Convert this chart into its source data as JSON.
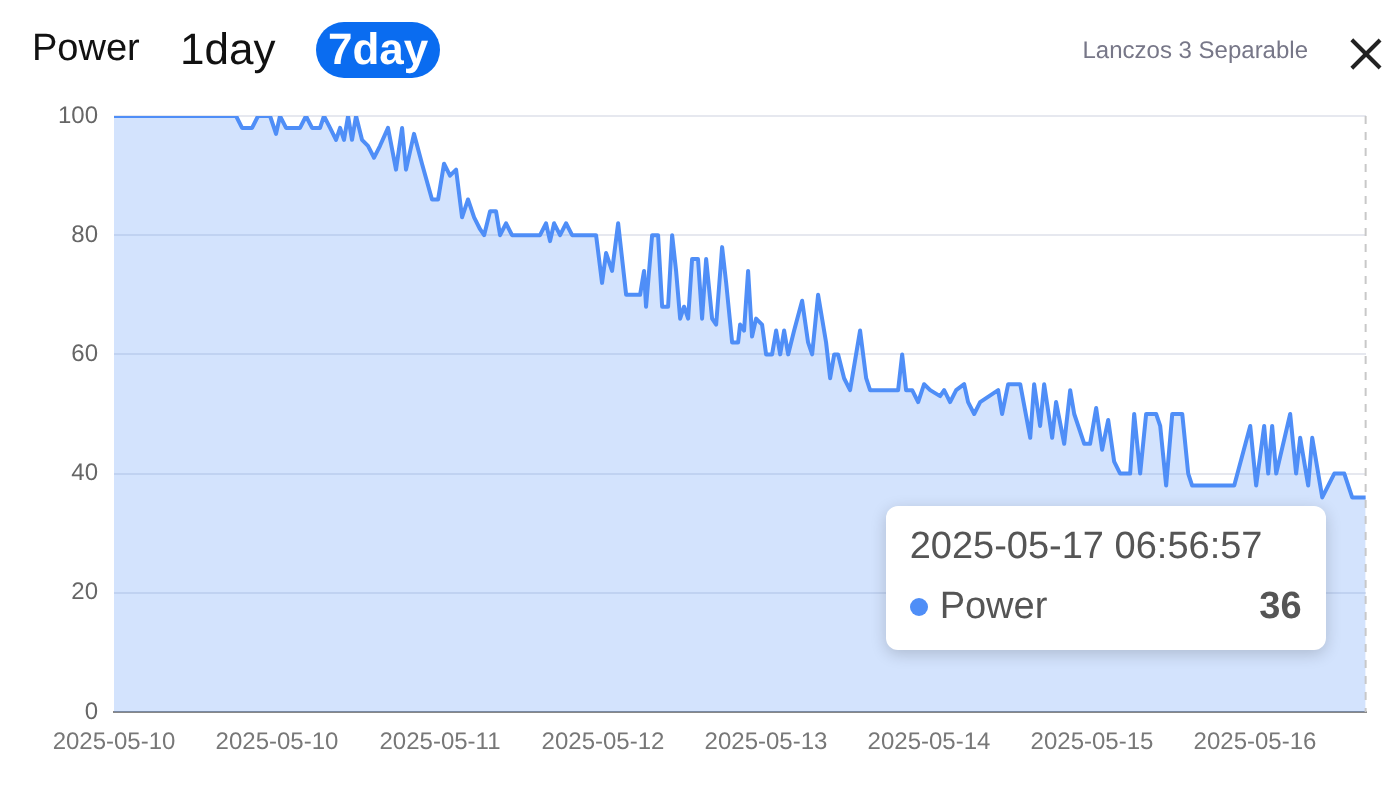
{
  "chart_data": {
    "type": "area",
    "title": "Power",
    "annotations": [
      "1day",
      "7day",
      "Lanczos 3 Separable",
      {
        "text": "2025-05-17 06:56:57",
        "x": "2025-05-17T06:56:57",
        "y": 36
      },
      {
        "text": "36",
        "x": "2025-05-17T06:56:57",
        "y": 36
      }
    ],
    "series": [
      {
        "name": "Power",
        "color": "#4f8ef7",
        "x": [
          "2025-05-10T00:00",
          "2025-05-10T17:04",
          "2025-05-10T17:54",
          "2025-05-10T19:18",
          "2025-05-10T20:08",
          "2025-05-10T21:49",
          "2025-05-10T22:39",
          "2025-05-10T23:12",
          "2025-05-11T00:03",
          "2025-05-11T02:00",
          "2025-05-11T02:50",
          "2025-05-11T03:41",
          "2025-05-11T04:48",
          "2025-05-11T05:21",
          "2025-05-11T06:12",
          "2025-05-11T07:02",
          "2025-05-11T07:36",
          "2025-05-11T08:09",
          "2025-05-11T08:43",
          "2025-05-11T09:16",
          "2025-05-11T09:50",
          "2025-05-11T10:40",
          "2025-05-11T11:30",
          "2025-05-11T12:21",
          "2025-05-11T13:11",
          "2025-05-11T14:18",
          "2025-05-11T15:25",
          "2025-05-11T16:16",
          "2025-05-11T16:49",
          "2025-05-11T17:56",
          "2025-05-11T19:03",
          "2025-05-11T20:27",
          "2025-05-11T21:18",
          "2025-05-11T22:08",
          "2025-05-11T22:58",
          "2025-05-11T23:49",
          "2025-05-12T00:39",
          "2025-05-12T01:29",
          "2025-05-12T02:20",
          "2025-05-12T03:10",
          "2025-05-12T03:44",
          "2025-05-12T04:34",
          "2025-05-12T05:24",
          "2025-05-12T05:58",
          "2025-05-12T06:48",
          "2025-05-12T07:38",
          "2025-05-12T11:33",
          "2025-05-12T12:23",
          "2025-05-12T12:57",
          "2025-05-12T13:31",
          "2025-05-12T14:21",
          "2025-05-12T15:11",
          "2025-05-12T16:02",
          "2025-05-12T19:23",
          "2025-05-12T20:13",
          "2025-05-12T20:47",
          "2025-05-12T21:37",
          "2025-05-12T22:28",
          "2025-05-12T23:35",
          "2025-05-13T01:32",
          "2025-05-13T02:05",
          "2025-05-13T02:22",
          "2025-05-13T03:13",
          "2025-05-13T04:03",
          "2025-05-13T04:37",
          "2025-05-13T05:27",
          "2025-05-13T06:01",
          "2025-05-13T06:34",
          "2025-05-13T07:08",
          "2025-05-13T07:41",
          "2025-05-13T08:15",
          "2025-05-13T08:48",
          "2025-05-13T09:38",
          "2025-05-13T10:12",
          "2025-05-13T10:46",
          "2025-05-13T11:36",
          "2025-05-13T12:10",
          "2025-05-13T13:00",
          "2025-05-13T13:34",
          "2025-05-13T14:24",
          "2025-05-13T15:14",
          "2025-05-13T15:31",
          "2025-05-13T16:04",
          "2025-05-13T16:38",
          "2025-05-13T17:11",
          "2025-05-13T17:45",
          "2025-05-13T18:35",
          "2025-05-13T19:09",
          "2025-05-13T19:59",
          "2025-05-13T20:33",
          "2025-05-13T21:07",
          "2025-05-13T21:40",
          "2025-05-13T22:14",
          "2025-05-13T23:04",
          "2025-05-14T00:11",
          "2025-05-14T01:01",
          "2025-05-14T01:35",
          "2025-05-14T02:25",
          "2025-05-14T03:32",
          "2025-05-14T04:06",
          "2025-05-14T04:40",
          "2025-05-14T05:13",
          "2025-05-14T06:03",
          "2025-05-14T06:53",
          "2025-05-14T08:17",
          "2025-05-14T09:08",
          "2025-05-14T09:41",
          "2025-05-14T13:36",
          "2025-05-14T14:10",
          "2025-05-14T14:43",
          "2025-05-14T15:34",
          "2025-05-14T16:24",
          "2025-05-14T17:14",
          "2025-05-14T18:05",
          "2025-05-14T19:28",
          "2025-05-14T20:02",
          "2025-05-14T20:52",
          "2025-05-14T21:43",
          "2025-05-14T22:50",
          "2025-05-14T23:23",
          "2025-05-15T00:14",
          "2025-05-15T01:04",
          "2025-05-15T03:35",
          "2025-05-15T04:08",
          "2025-05-15T04:59",
          "2025-05-15T06:40",
          "2025-05-15T08:04",
          "2025-05-15T08:37",
          "2025-05-15T09:27",
          "2025-05-15T10:01",
          "2025-05-15T11:08",
          "2025-05-15T11:41",
          "2025-05-15T12:49",
          "2025-05-15T13:39",
          "2025-05-15T14:13",
          "2025-05-15T15:37",
          "2025-05-15T16:26",
          "2025-05-15T17:17",
          "2025-05-15T18:07",
          "2025-05-15T18:58",
          "2025-05-15T19:48",
          "2025-05-15T20:38",
          "2025-05-15T22:02",
          "2025-05-15T22:36",
          "2025-05-15T23:26",
          "2025-05-16T00:16",
          "2025-05-16T01:40",
          "2025-05-16T02:14",
          "2025-05-16T03:04",
          "2025-05-16T03:55",
          "2025-05-16T05:19",
          "2025-05-16T06:09",
          "2025-05-16T06:42",
          "2025-05-16T12:35",
          "2025-05-16T14:49",
          "2025-05-16T15:39",
          "2025-05-16T16:46",
          "2025-05-16T17:20",
          "2025-05-16T17:53",
          "2025-05-16T18:27",
          "2025-05-16T20:24",
          "2025-05-16T21:14",
          "2025-05-16T21:48",
          "2025-05-16T22:55",
          "2025-05-16T23:29",
          "2025-05-17T00:53",
          "2025-05-17T01:43",
          "2025-05-17T02:34",
          "2025-05-17T03:58",
          "2025-05-17T05:04",
          "2025-05-17T06:56:57"
        ],
        "values": [
          100,
          100,
          98,
          98,
          100,
          100,
          97,
          100,
          98,
          98,
          100,
          98,
          98,
          100,
          98,
          96,
          98,
          96,
          100,
          96,
          100,
          96,
          95,
          93,
          95,
          98,
          91,
          98,
          91,
          97,
          92,
          86,
          86,
          92,
          90,
          91,
          83,
          86,
          83,
          81,
          80,
          84,
          84,
          80,
          82,
          80,
          80,
          82,
          79,
          82,
          80,
          82,
          80,
          80,
          72,
          77,
          74,
          82,
          70,
          70,
          74,
          68,
          80,
          80,
          68,
          68,
          80,
          74,
          66,
          68,
          66,
          76,
          76,
          66,
          76,
          66,
          65,
          78,
          72,
          62,
          62,
          65,
          64,
          74,
          63,
          66,
          65,
          60,
          60,
          64,
          60,
          64,
          60,
          64,
          69,
          62,
          60,
          70,
          62,
          56,
          60,
          60,
          56,
          54,
          64,
          56,
          54,
          54,
          60,
          54,
          54,
          52,
          55,
          54,
          53,
          54,
          52,
          54,
          55,
          52,
          50,
          52,
          54,
          50,
          55,
          55,
          46,
          55,
          48,
          55,
          46,
          52,
          45,
          54,
          50,
          45,
          45,
          51,
          44,
          49,
          42,
          40,
          40,
          50,
          40,
          50,
          50,
          48,
          38,
          50,
          50,
          40,
          38,
          38,
          48,
          38,
          48,
          40,
          48,
          40,
          50,
          40,
          46,
          38,
          46,
          36,
          38,
          40,
          40,
          36,
          36
        ]
      }
    ],
    "xlim": [
      "2025-05-10T00:00",
      "2025-05-17T07:00"
    ],
    "xticks": [
      {
        "value": "2025-05-10T00:00",
        "label": "2025-05-10"
      },
      {
        "value": "2025-05-10T22:47",
        "label": "2025-05-10"
      },
      {
        "value": "2025-05-11T21:34",
        "label": "2025-05-11"
      },
      {
        "value": "2025-05-12T20:21",
        "label": "2025-05-12"
      },
      {
        "value": "2025-05-13T19:08",
        "label": "2025-05-13"
      },
      {
        "value": "2025-05-14T17:55",
        "label": "2025-05-14"
      },
      {
        "value": "2025-05-15T16:42",
        "label": "2025-05-15"
      },
      {
        "value": "2025-05-16T15:29",
        "label": "2025-05-16"
      }
    ],
    "ylim": [
      0,
      100
    ],
    "yticks": [
      0,
      20,
      40,
      60,
      80,
      100
    ],
    "grid": "y",
    "legend": "bottom right",
    "marker": "none",
    "ref_lines": [
      {
        "axis": "x",
        "value": "2025-05-17T06:56:57",
        "color": "#c8c8c8",
        "line_style": "dashed"
      }
    ]
  }
}
